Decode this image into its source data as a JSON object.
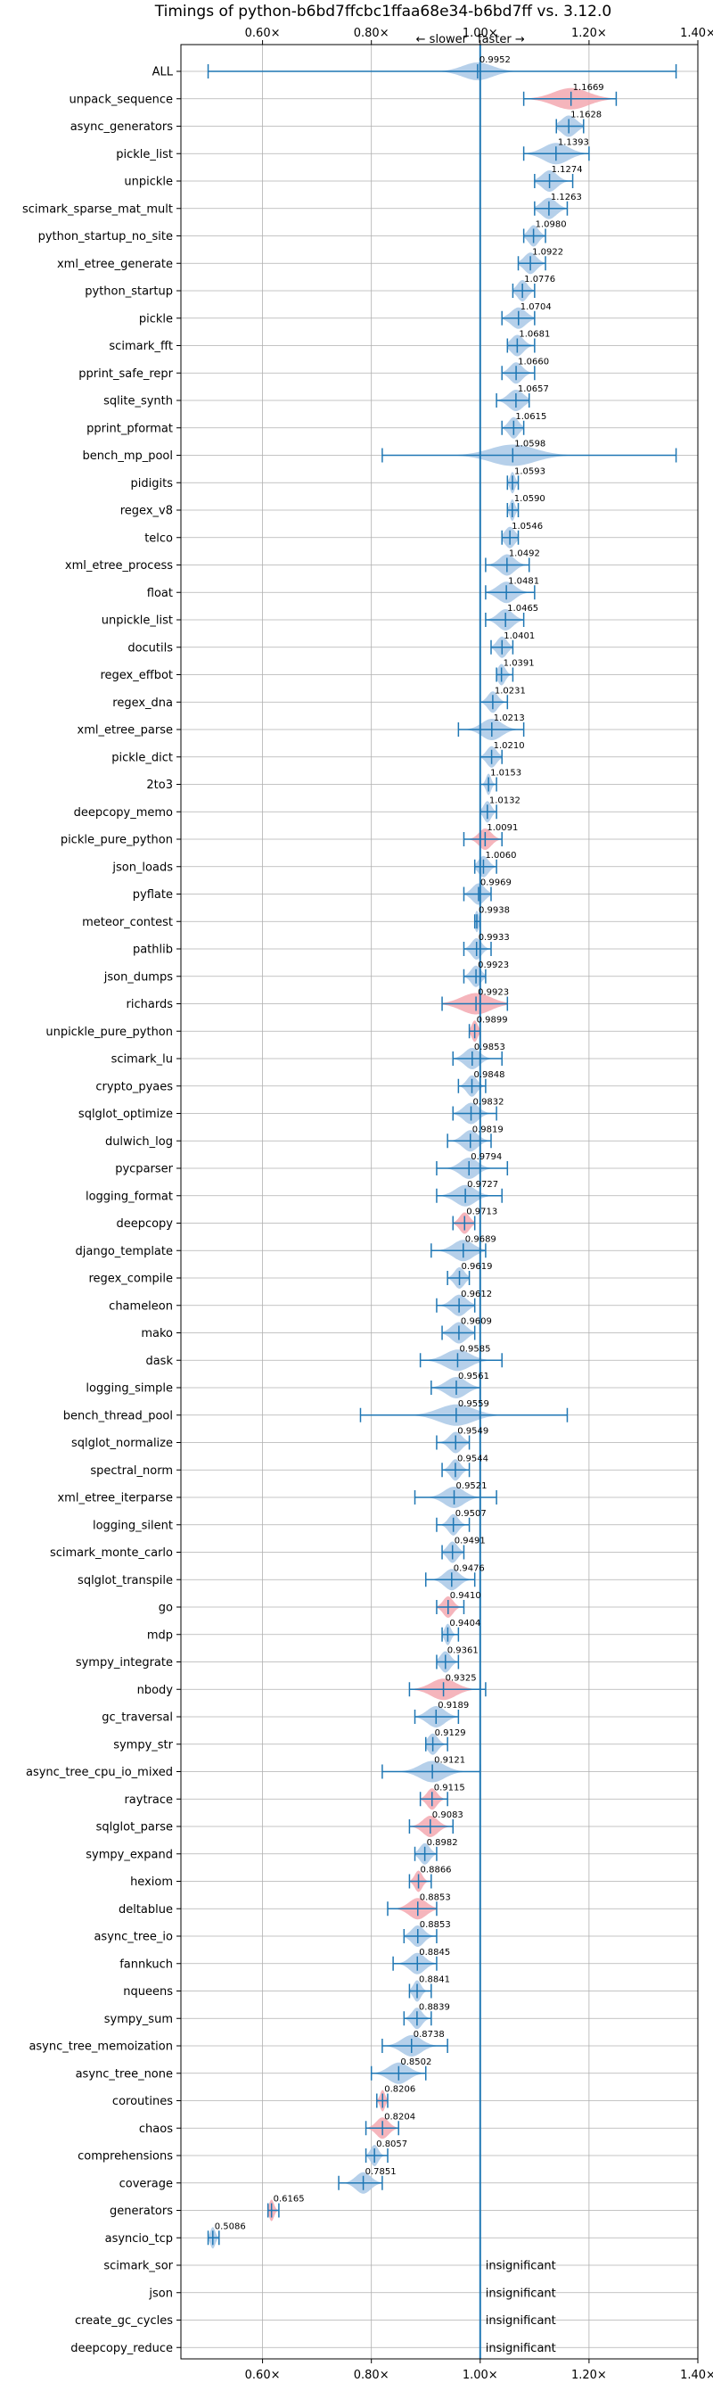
{
  "chart_data": {
    "type": "violin",
    "title": "Timings of python-b6bd7ffcbc1ffaa68e34-b6bd7ff vs. 3.12.0",
    "annotation_slower": "← slower",
    "annotation_faster": "faster →",
    "xlim": [
      0.45,
      1.4
    ],
    "x_ticks": [
      0.6,
      0.8,
      1.0,
      1.2,
      1.4
    ],
    "x_tick_labels": [
      "0.60×",
      "0.80×",
      "1.00×",
      "1.20×",
      "1.40×"
    ],
    "reference_line": 1.0,
    "grid": true,
    "colors": {
      "faster": "#a9c8e6",
      "slower": "#f3a8b0",
      "line": "#1f77b4"
    },
    "insignificant_label": "insignificant",
    "benchmarks": [
      {
        "name": "ALL",
        "value": 0.9952,
        "min": 0.5,
        "max": 1.36,
        "spread": 0.06,
        "color": "blue"
      },
      {
        "name": "unpack_sequence",
        "value": 1.1669,
        "min": 1.08,
        "max": 1.25,
        "spread": 0.07,
        "color": "red"
      },
      {
        "name": "async_generators",
        "value": 1.1628,
        "min": 1.14,
        "max": 1.19,
        "spread": 0.03,
        "color": "blue"
      },
      {
        "name": "pickle_list",
        "value": 1.1393,
        "min": 1.08,
        "max": 1.2,
        "spread": 0.05,
        "color": "blue"
      },
      {
        "name": "unpickle",
        "value": 1.1274,
        "min": 1.1,
        "max": 1.17,
        "spread": 0.03,
        "color": "blue"
      },
      {
        "name": "scimark_sparse_mat_mult",
        "value": 1.1263,
        "min": 1.1,
        "max": 1.16,
        "spread": 0.03,
        "color": "blue"
      },
      {
        "name": "python_startup_no_site",
        "value": 1.098,
        "min": 1.08,
        "max": 1.12,
        "spread": 0.02,
        "color": "blue"
      },
      {
        "name": "xml_etree_generate",
        "value": 1.0922,
        "min": 1.07,
        "max": 1.12,
        "spread": 0.025,
        "color": "blue"
      },
      {
        "name": "python_startup",
        "value": 1.0776,
        "min": 1.06,
        "max": 1.1,
        "spread": 0.02,
        "color": "blue"
      },
      {
        "name": "pickle",
        "value": 1.0704,
        "min": 1.04,
        "max": 1.1,
        "spread": 0.03,
        "color": "blue"
      },
      {
        "name": "scimark_fft",
        "value": 1.0681,
        "min": 1.05,
        "max": 1.1,
        "spread": 0.025,
        "color": "blue"
      },
      {
        "name": "pprint_safe_repr",
        "value": 1.066,
        "min": 1.04,
        "max": 1.1,
        "spread": 0.025,
        "color": "blue"
      },
      {
        "name": "sqlite_synth",
        "value": 1.0657,
        "min": 1.03,
        "max": 1.09,
        "spread": 0.03,
        "color": "blue"
      },
      {
        "name": "pprint_pformat",
        "value": 1.0615,
        "min": 1.04,
        "max": 1.08,
        "spread": 0.02,
        "color": "blue"
      },
      {
        "name": "bench_mp_pool",
        "value": 1.0598,
        "min": 0.82,
        "max": 1.36,
        "spread": 0.09,
        "color": "blue"
      },
      {
        "name": "pidigits",
        "value": 1.0593,
        "min": 1.05,
        "max": 1.07,
        "spread": 0.01,
        "color": "blue"
      },
      {
        "name": "regex_v8",
        "value": 1.059,
        "min": 1.05,
        "max": 1.07,
        "spread": 0.01,
        "color": "blue"
      },
      {
        "name": "telco",
        "value": 1.0546,
        "min": 1.04,
        "max": 1.07,
        "spread": 0.02,
        "color": "blue"
      },
      {
        "name": "xml_etree_process",
        "value": 1.0492,
        "min": 1.01,
        "max": 1.09,
        "spread": 0.03,
        "color": "blue"
      },
      {
        "name": "float",
        "value": 1.0481,
        "min": 1.01,
        "max": 1.1,
        "spread": 0.035,
        "color": "blue"
      },
      {
        "name": "unpickle_list",
        "value": 1.0465,
        "min": 1.01,
        "max": 1.08,
        "spread": 0.03,
        "color": "blue"
      },
      {
        "name": "docutils",
        "value": 1.0401,
        "min": 1.02,
        "max": 1.06,
        "spread": 0.02,
        "color": "blue"
      },
      {
        "name": "regex_effbot",
        "value": 1.0391,
        "min": 1.03,
        "max": 1.06,
        "spread": 0.015,
        "color": "blue"
      },
      {
        "name": "regex_dna",
        "value": 1.0231,
        "min": 1.0,
        "max": 1.05,
        "spread": 0.02,
        "color": "blue"
      },
      {
        "name": "xml_etree_parse",
        "value": 1.0213,
        "min": 0.96,
        "max": 1.08,
        "spread": 0.04,
        "color": "blue"
      },
      {
        "name": "pickle_dict",
        "value": 1.021,
        "min": 1.0,
        "max": 1.04,
        "spread": 0.02,
        "color": "blue"
      },
      {
        "name": "2to3",
        "value": 1.0153,
        "min": 1.0,
        "max": 1.03,
        "spread": 0.01,
        "color": "blue"
      },
      {
        "name": "deepcopy_memo",
        "value": 1.0132,
        "min": 1.0,
        "max": 1.03,
        "spread": 0.015,
        "color": "blue"
      },
      {
        "name": "pickle_pure_python",
        "value": 1.0091,
        "min": 0.97,
        "max": 1.04,
        "spread": 0.025,
        "color": "red"
      },
      {
        "name": "json_loads",
        "value": 1.006,
        "min": 0.99,
        "max": 1.03,
        "spread": 0.02,
        "color": "blue"
      },
      {
        "name": "pyflate",
        "value": 0.9969,
        "min": 0.97,
        "max": 1.02,
        "spread": 0.025,
        "color": "blue"
      },
      {
        "name": "meteor_contest",
        "value": 0.9938,
        "min": 0.99,
        "max": 1.0,
        "spread": 0.008,
        "color": "blue"
      },
      {
        "name": "pathlib",
        "value": 0.9933,
        "min": 0.97,
        "max": 1.02,
        "spread": 0.02,
        "color": "blue"
      },
      {
        "name": "json_dumps",
        "value": 0.9923,
        "min": 0.97,
        "max": 1.01,
        "spread": 0.02,
        "color": "blue"
      },
      {
        "name": "richards",
        "value": 0.9923,
        "min": 0.93,
        "max": 1.05,
        "spread": 0.06,
        "color": "red"
      },
      {
        "name": "unpickle_pure_python",
        "value": 0.9899,
        "min": 0.98,
        "max": 1.0,
        "spread": 0.012,
        "color": "red"
      },
      {
        "name": "scimark_lu",
        "value": 0.9853,
        "min": 0.95,
        "max": 1.04,
        "spread": 0.03,
        "color": "blue"
      },
      {
        "name": "crypto_pyaes",
        "value": 0.9848,
        "min": 0.96,
        "max": 1.01,
        "spread": 0.02,
        "color": "blue"
      },
      {
        "name": "sqlglot_optimize",
        "value": 0.9832,
        "min": 0.95,
        "max": 1.03,
        "spread": 0.03,
        "color": "blue"
      },
      {
        "name": "dulwich_log",
        "value": 0.9819,
        "min": 0.94,
        "max": 1.02,
        "spread": 0.03,
        "color": "blue"
      },
      {
        "name": "pycparser",
        "value": 0.9794,
        "min": 0.92,
        "max": 1.05,
        "spread": 0.035,
        "color": "blue"
      },
      {
        "name": "logging_format",
        "value": 0.9727,
        "min": 0.92,
        "max": 1.04,
        "spread": 0.04,
        "color": "blue"
      },
      {
        "name": "deepcopy",
        "value": 0.9713,
        "min": 0.95,
        "max": 0.99,
        "spread": 0.02,
        "color": "red"
      },
      {
        "name": "django_template",
        "value": 0.9689,
        "min": 0.91,
        "max": 1.01,
        "spread": 0.04,
        "color": "blue"
      },
      {
        "name": "regex_compile",
        "value": 0.9619,
        "min": 0.94,
        "max": 0.98,
        "spread": 0.02,
        "color": "blue"
      },
      {
        "name": "chameleon",
        "value": 0.9612,
        "min": 0.92,
        "max": 0.99,
        "spread": 0.03,
        "color": "blue"
      },
      {
        "name": "mako",
        "value": 0.9609,
        "min": 0.93,
        "max": 0.99,
        "spread": 0.03,
        "color": "blue"
      },
      {
        "name": "dask",
        "value": 0.9585,
        "min": 0.89,
        "max": 1.04,
        "spread": 0.05,
        "color": "blue"
      },
      {
        "name": "logging_simple",
        "value": 0.9561,
        "min": 0.91,
        "max": 1.0,
        "spread": 0.04,
        "color": "blue"
      },
      {
        "name": "bench_thread_pool",
        "value": 0.9559,
        "min": 0.78,
        "max": 1.16,
        "spread": 0.07,
        "color": "blue"
      },
      {
        "name": "sqlglot_normalize",
        "value": 0.9549,
        "min": 0.92,
        "max": 0.98,
        "spread": 0.025,
        "color": "blue"
      },
      {
        "name": "spectral_norm",
        "value": 0.9544,
        "min": 0.93,
        "max": 0.98,
        "spread": 0.02,
        "color": "blue"
      },
      {
        "name": "xml_etree_iterparse",
        "value": 0.9521,
        "min": 0.88,
        "max": 1.03,
        "spread": 0.04,
        "color": "blue"
      },
      {
        "name": "logging_silent",
        "value": 0.9507,
        "min": 0.92,
        "max": 0.98,
        "spread": 0.02,
        "color": "blue"
      },
      {
        "name": "scimark_monte_carlo",
        "value": 0.9491,
        "min": 0.93,
        "max": 0.97,
        "spread": 0.02,
        "color": "blue"
      },
      {
        "name": "sqlglot_transpile",
        "value": 0.9476,
        "min": 0.9,
        "max": 0.99,
        "spread": 0.03,
        "color": "blue"
      },
      {
        "name": "go",
        "value": 0.941,
        "min": 0.92,
        "max": 0.97,
        "spread": 0.02,
        "color": "red"
      },
      {
        "name": "mdp",
        "value": 0.9404,
        "min": 0.93,
        "max": 0.96,
        "spread": 0.012,
        "color": "blue"
      },
      {
        "name": "sympy_integrate",
        "value": 0.9361,
        "min": 0.92,
        "max": 0.96,
        "spread": 0.02,
        "color": "blue"
      },
      {
        "name": "nbody",
        "value": 0.9325,
        "min": 0.87,
        "max": 1.01,
        "spread": 0.05,
        "color": "red"
      },
      {
        "name": "gc_traversal",
        "value": 0.9189,
        "min": 0.88,
        "max": 0.96,
        "spread": 0.035,
        "color": "blue"
      },
      {
        "name": "sympy_str",
        "value": 0.9129,
        "min": 0.9,
        "max": 0.94,
        "spread": 0.02,
        "color": "blue"
      },
      {
        "name": "async_tree_cpu_io_mixed",
        "value": 0.9121,
        "min": 0.82,
        "max": 1.0,
        "spread": 0.05,
        "color": "blue"
      },
      {
        "name": "raytrace",
        "value": 0.9115,
        "min": 0.89,
        "max": 0.94,
        "spread": 0.02,
        "color": "red"
      },
      {
        "name": "sqlglot_parse",
        "value": 0.9083,
        "min": 0.87,
        "max": 0.95,
        "spread": 0.03,
        "color": "red"
      },
      {
        "name": "sympy_expand",
        "value": 0.8982,
        "min": 0.88,
        "max": 0.92,
        "spread": 0.02,
        "color": "blue"
      },
      {
        "name": "hexiom",
        "value": 0.8866,
        "min": 0.87,
        "max": 0.91,
        "spread": 0.015,
        "color": "red"
      },
      {
        "name": "deltablue",
        "value": 0.8853,
        "min": 0.83,
        "max": 0.92,
        "spread": 0.035,
        "color": "red"
      },
      {
        "name": "async_tree_io",
        "value": 0.8853,
        "min": 0.86,
        "max": 0.92,
        "spread": 0.025,
        "color": "blue"
      },
      {
        "name": "fannkuch",
        "value": 0.8845,
        "min": 0.84,
        "max": 0.92,
        "spread": 0.03,
        "color": "blue"
      },
      {
        "name": "nqueens",
        "value": 0.8841,
        "min": 0.87,
        "max": 0.91,
        "spread": 0.015,
        "color": "blue"
      },
      {
        "name": "sympy_sum",
        "value": 0.8839,
        "min": 0.86,
        "max": 0.91,
        "spread": 0.02,
        "color": "blue"
      },
      {
        "name": "async_tree_memoization",
        "value": 0.8738,
        "min": 0.82,
        "max": 0.94,
        "spread": 0.04,
        "color": "blue"
      },
      {
        "name": "async_tree_none",
        "value": 0.8502,
        "min": 0.8,
        "max": 0.9,
        "spread": 0.04,
        "color": "blue"
      },
      {
        "name": "coroutines",
        "value": 0.8206,
        "min": 0.81,
        "max": 0.83,
        "spread": 0.01,
        "color": "red"
      },
      {
        "name": "chaos",
        "value": 0.8204,
        "min": 0.79,
        "max": 0.85,
        "spread": 0.025,
        "color": "red"
      },
      {
        "name": "comprehensions",
        "value": 0.8057,
        "min": 0.79,
        "max": 0.83,
        "spread": 0.015,
        "color": "blue"
      },
      {
        "name": "coverage",
        "value": 0.7851,
        "min": 0.74,
        "max": 0.82,
        "spread": 0.03,
        "color": "blue"
      },
      {
        "name": "generators",
        "value": 0.6165,
        "min": 0.61,
        "max": 0.63,
        "spread": 0.01,
        "color": "red"
      },
      {
        "name": "asyncio_tcp",
        "value": 0.5086,
        "min": 0.5,
        "max": 0.52,
        "spread": 0.01,
        "color": "blue"
      },
      {
        "name": "scimark_sor",
        "value": null,
        "insignificant": true
      },
      {
        "name": "json",
        "value": null,
        "insignificant": true
      },
      {
        "name": "create_gc_cycles",
        "value": null,
        "insignificant": true
      },
      {
        "name": "deepcopy_reduce",
        "value": null,
        "insignificant": true
      }
    ]
  }
}
